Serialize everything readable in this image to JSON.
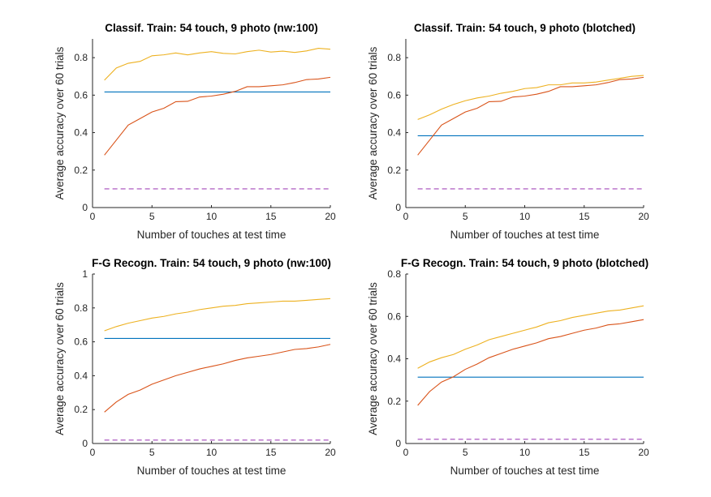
{
  "chart_data": [
    {
      "type": "line",
      "title": "Classif. Train: 54 touch, 9 photo (nw:100)",
      "xlabel": "Number of touches at test time",
      "ylabel": "Average accuracy over 60 trials",
      "xlim": [
        0,
        20
      ],
      "ylim": [
        0,
        0.9
      ],
      "xticks": [
        0,
        5,
        10,
        15,
        20
      ],
      "xtick_labels": [
        "0",
        "5",
        "10",
        "15",
        "20"
      ],
      "yticks": [
        0,
        0.2,
        0.4,
        0.6,
        0.8
      ],
      "ytick_labels": [
        "0",
        "0.2",
        "0.4",
        "0.6",
        "0.8"
      ],
      "grid": false,
      "series": [
        {
          "color": "#0072BD",
          "dash": "solid",
          "x": [
            1,
            20
          ],
          "y": [
            0.617,
            0.617
          ]
        },
        {
          "color": "#D95319",
          "dash": "solid",
          "x": [
            1,
            2,
            3,
            4,
            5,
            6,
            7,
            8,
            9,
            10,
            11,
            12,
            13,
            14,
            15,
            16,
            17,
            18,
            19,
            20
          ],
          "y": [
            0.28,
            0.36,
            0.44,
            0.475,
            0.51,
            0.53,
            0.565,
            0.567,
            0.59,
            0.595,
            0.605,
            0.62,
            0.645,
            0.645,
            0.65,
            0.655,
            0.667,
            0.683,
            0.686,
            0.695
          ]
        },
        {
          "color": "#EDB120",
          "dash": "solid",
          "x": [
            1,
            2,
            3,
            4,
            5,
            6,
            7,
            8,
            9,
            10,
            11,
            12,
            13,
            14,
            15,
            16,
            17,
            18,
            19,
            20
          ],
          "y": [
            0.68,
            0.745,
            0.77,
            0.78,
            0.81,
            0.815,
            0.825,
            0.815,
            0.825,
            0.832,
            0.823,
            0.82,
            0.832,
            0.84,
            0.83,
            0.835,
            0.828,
            0.836,
            0.85,
            0.845
          ]
        },
        {
          "color": "#A347BA",
          "dash": "dashed",
          "x": [
            1,
            20
          ],
          "y": [
            0.1,
            0.1
          ]
        }
      ]
    },
    {
      "type": "line",
      "title": "Classif. Train: 54 touch, 9 photo (blotched)",
      "xlabel": "Number of touches at test time",
      "ylabel": "Average accuracy over 60 trials",
      "xlim": [
        0,
        20
      ],
      "ylim": [
        0,
        0.9
      ],
      "xticks": [
        0,
        5,
        10,
        15,
        20
      ],
      "xtick_labels": [
        "0",
        "5",
        "10",
        "15",
        "20"
      ],
      "yticks": [
        0,
        0.2,
        0.4,
        0.6,
        0.8
      ],
      "ytick_labels": [
        "0",
        "0.2",
        "0.4",
        "0.6",
        "0.8"
      ],
      "grid": false,
      "series": [
        {
          "color": "#0072BD",
          "dash": "solid",
          "x": [
            1,
            20
          ],
          "y": [
            0.383,
            0.383
          ]
        },
        {
          "color": "#D95319",
          "dash": "solid",
          "x": [
            1,
            2,
            3,
            4,
            5,
            6,
            7,
            8,
            9,
            10,
            11,
            12,
            13,
            14,
            15,
            16,
            17,
            18,
            19,
            20
          ],
          "y": [
            0.28,
            0.36,
            0.44,
            0.475,
            0.51,
            0.53,
            0.565,
            0.567,
            0.59,
            0.595,
            0.605,
            0.62,
            0.645,
            0.645,
            0.65,
            0.655,
            0.667,
            0.683,
            0.686,
            0.695
          ]
        },
        {
          "color": "#EDB120",
          "dash": "solid",
          "x": [
            1,
            2,
            3,
            4,
            5,
            6,
            7,
            8,
            9,
            10,
            11,
            12,
            13,
            14,
            15,
            16,
            17,
            18,
            19,
            20
          ],
          "y": [
            0.47,
            0.495,
            0.525,
            0.55,
            0.57,
            0.585,
            0.595,
            0.61,
            0.62,
            0.635,
            0.64,
            0.655,
            0.655,
            0.665,
            0.665,
            0.67,
            0.68,
            0.69,
            0.7,
            0.705
          ]
        },
        {
          "color": "#A347BA",
          "dash": "dashed",
          "x": [
            1,
            20
          ],
          "y": [
            0.1,
            0.1
          ]
        }
      ]
    },
    {
      "type": "line",
      "title": "F-G Recogn. Train: 54 touch, 9 photo (nw:100)",
      "xlabel": "Number of touches at test time",
      "ylabel": "Average accuracy over 60 trials",
      "xlim": [
        0,
        20
      ],
      "ylim": [
        0,
        1
      ],
      "xticks": [
        0,
        5,
        10,
        15,
        20
      ],
      "xtick_labels": [
        "0",
        "5",
        "10",
        "15",
        "20"
      ],
      "yticks": [
        0,
        0.2,
        0.4,
        0.6,
        0.8,
        1
      ],
      "ytick_labels": [
        "0",
        "0.2",
        "0.4",
        "0.6",
        "0.8",
        "1"
      ],
      "grid": false,
      "series": [
        {
          "color": "#0072BD",
          "dash": "solid",
          "x": [
            1,
            20
          ],
          "y": [
            0.62,
            0.62
          ]
        },
        {
          "color": "#D95319",
          "dash": "solid",
          "x": [
            1,
            2,
            3,
            4,
            5,
            6,
            7,
            8,
            9,
            10,
            11,
            12,
            13,
            14,
            15,
            16,
            17,
            18,
            19,
            20
          ],
          "y": [
            0.185,
            0.245,
            0.29,
            0.315,
            0.35,
            0.375,
            0.4,
            0.42,
            0.44,
            0.455,
            0.47,
            0.49,
            0.505,
            0.515,
            0.525,
            0.54,
            0.555,
            0.56,
            0.57,
            0.585
          ]
        },
        {
          "color": "#EDB120",
          "dash": "solid",
          "x": [
            1,
            2,
            3,
            4,
            5,
            6,
            7,
            8,
            9,
            10,
            11,
            12,
            13,
            14,
            15,
            16,
            17,
            18,
            19,
            20
          ],
          "y": [
            0.665,
            0.69,
            0.71,
            0.725,
            0.74,
            0.75,
            0.765,
            0.775,
            0.79,
            0.8,
            0.81,
            0.815,
            0.825,
            0.83,
            0.835,
            0.84,
            0.84,
            0.845,
            0.85,
            0.855
          ]
        },
        {
          "color": "#A347BA",
          "dash": "dashed",
          "x": [
            1,
            20
          ],
          "y": [
            0.02,
            0.02
          ]
        }
      ]
    },
    {
      "type": "line",
      "title": "F-G Recogn. Train: 54 touch, 9 photo (blotched)",
      "xlabel": "Number of touches at test time",
      "ylabel": "Average accuracy over 60 trials",
      "xlim": [
        0,
        20
      ],
      "ylim": [
        0,
        0.8
      ],
      "xticks": [
        0,
        5,
        10,
        15,
        20
      ],
      "xtick_labels": [
        "0",
        "5",
        "10",
        "15",
        "20"
      ],
      "yticks": [
        0,
        0.2,
        0.4,
        0.6,
        0.8
      ],
      "ytick_labels": [
        "0",
        "0.2",
        "0.4",
        "0.6",
        "0.8"
      ],
      "grid": false,
      "series": [
        {
          "color": "#0072BD",
          "dash": "solid",
          "x": [
            1,
            20
          ],
          "y": [
            0.313,
            0.313
          ]
        },
        {
          "color": "#D95319",
          "dash": "solid",
          "x": [
            1,
            2,
            3,
            4,
            5,
            6,
            7,
            8,
            9,
            10,
            11,
            12,
            13,
            14,
            15,
            16,
            17,
            18,
            19,
            20
          ],
          "y": [
            0.18,
            0.245,
            0.29,
            0.315,
            0.35,
            0.375,
            0.405,
            0.425,
            0.445,
            0.46,
            0.475,
            0.495,
            0.505,
            0.52,
            0.535,
            0.545,
            0.56,
            0.565,
            0.575,
            0.585
          ]
        },
        {
          "color": "#EDB120",
          "dash": "solid",
          "x": [
            1,
            2,
            3,
            4,
            5,
            6,
            7,
            8,
            9,
            10,
            11,
            12,
            13,
            14,
            15,
            16,
            17,
            18,
            19,
            20
          ],
          "y": [
            0.355,
            0.385,
            0.405,
            0.42,
            0.445,
            0.465,
            0.49,
            0.505,
            0.52,
            0.535,
            0.55,
            0.57,
            0.58,
            0.595,
            0.605,
            0.615,
            0.625,
            0.63,
            0.64,
            0.65
          ]
        },
        {
          "color": "#A347BA",
          "dash": "dashed",
          "x": [
            1,
            20
          ],
          "y": [
            0.02,
            0.02
          ]
        }
      ]
    }
  ]
}
